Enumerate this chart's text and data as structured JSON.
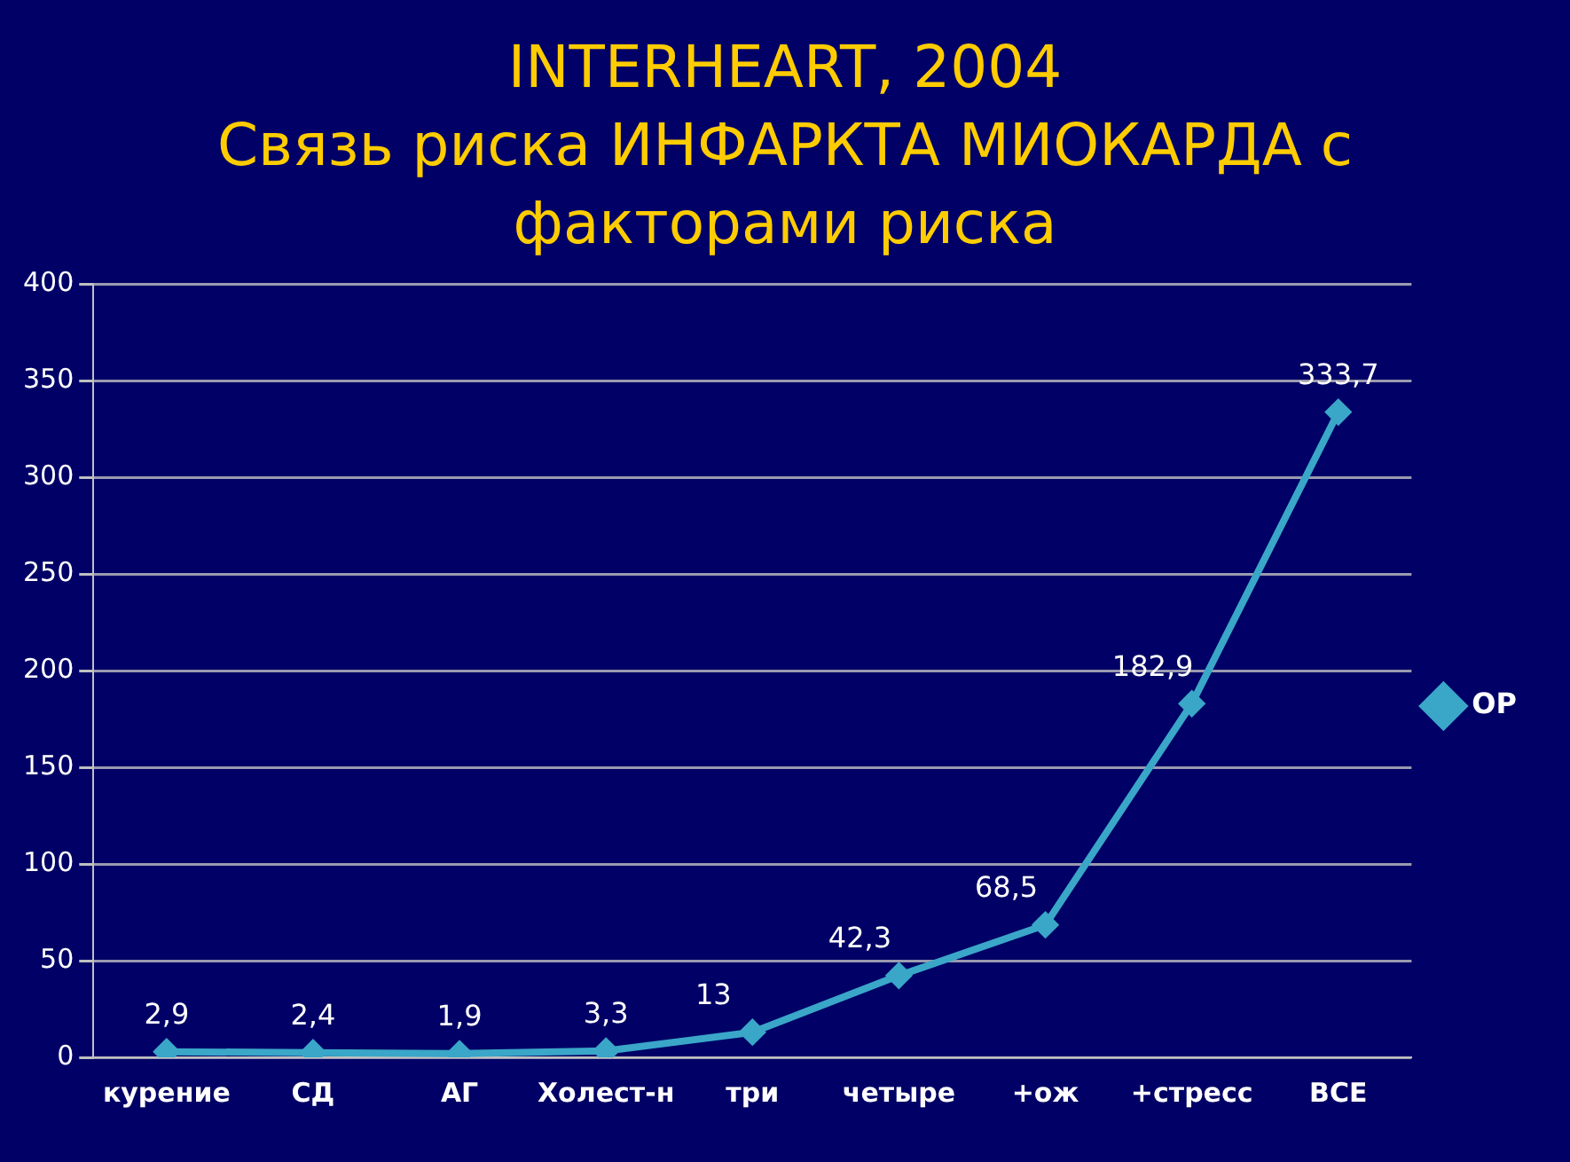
{
  "chart_data": {
    "type": "line",
    "title": "INTERHEART, 2004",
    "subtitle": "Связь риска ИНФАРКТА МИОКАРДА с факторами риска",
    "categories": [
      "курение",
      "СД",
      "АГ",
      "Холест-н",
      "три",
      "четыре",
      "+ож",
      "+стресс",
      "ВСЕ"
    ],
    "series": [
      {
        "name": "ОР",
        "color": "#3aa6c8",
        "values": [
          2.9,
          2.4,
          1.9,
          3.3,
          13,
          42.3,
          68.5,
          182.9,
          333.7
        ],
        "value_labels": [
          "2,9",
          "2,4",
          "1,9",
          "3,3",
          "13",
          "42,3",
          "68,5",
          "182,9",
          "333,7"
        ]
      }
    ],
    "ylim": [
      0,
      400
    ],
    "yticks": [
      0,
      50,
      100,
      150,
      200,
      250,
      300,
      350,
      400
    ],
    "grid": "y",
    "legend": "right",
    "marker": "diamond",
    "line_style": "solid"
  }
}
